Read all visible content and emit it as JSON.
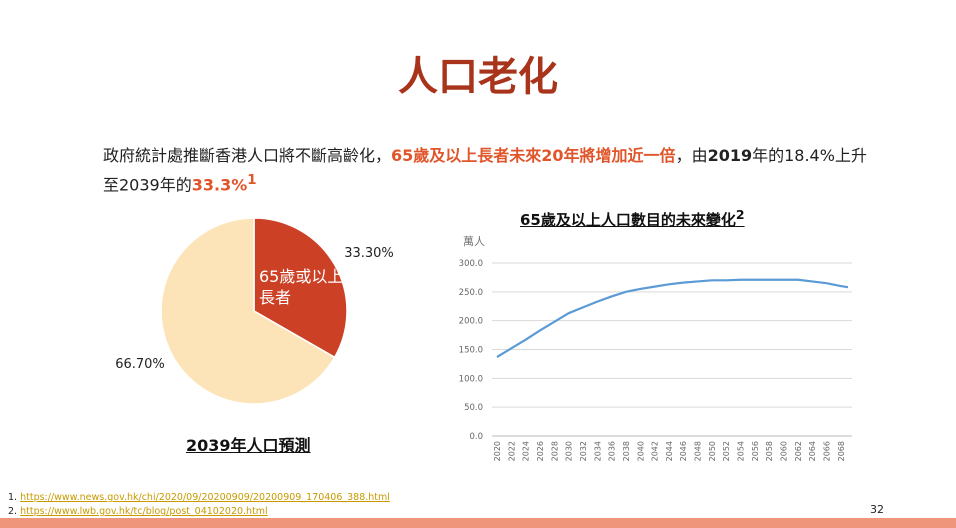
{
  "title": "人口老化",
  "intro": {
    "part1": "政府統計處推斷香港人口將不斷高齡化，",
    "highlight1": "65歲及以上長者未來20年將增加近一倍",
    "part2": "，由",
    "bold_year": "2019",
    "part3": "年的18.4%上升至2039年的",
    "highlight2": "33.3%",
    "sup": "1"
  },
  "chart_data": [
    {
      "type": "pie",
      "title": "2039年人口預測",
      "slices": [
        {
          "label": "65歲或以上長者",
          "value": 33.3,
          "data_label": "33.30%",
          "color": "#cc4125"
        },
        {
          "label": "",
          "value": 66.7,
          "data_label": "66.70%",
          "color": "#fde3b8"
        }
      ]
    },
    {
      "type": "line",
      "title": "65歲及以上人口數目的未來變化",
      "title_sup": "2",
      "ylabel": "萬人",
      "ylim": [
        0,
        300
      ],
      "yticks": [
        "0.0",
        "50.0",
        "100.0",
        "150.0",
        "200.0",
        "250.0",
        "300.0"
      ],
      "xticks": [
        "2020",
        "2022",
        "2024",
        "2026",
        "2028",
        "2030",
        "2032",
        "2034",
        "2036",
        "2038",
        "2040",
        "2042",
        "2044",
        "2046",
        "2048",
        "2050",
        "2052",
        "2054",
        "2056",
        "2058",
        "2060",
        "2062",
        "2064",
        "2066",
        "2068"
      ],
      "x": [
        2020,
        2022,
        2024,
        2026,
        2028,
        2030,
        2032,
        2034,
        2036,
        2038,
        2040,
        2042,
        2044,
        2046,
        2048,
        2050,
        2052,
        2054,
        2056,
        2058,
        2060,
        2062,
        2064,
        2066,
        2068,
        2069
      ],
      "values": [
        137,
        152,
        167,
        183,
        198,
        213,
        223,
        233,
        242,
        250,
        255,
        259,
        263,
        266,
        268,
        270,
        270,
        271,
        271,
        271,
        271,
        271,
        268,
        265,
        260,
        258
      ],
      "color": "#5b9bd5",
      "grid": true
    }
  ],
  "references": [
    {
      "num": "1.",
      "url": "https://www.news.gov.hk/chi/2020/09/20200909/20200909_170406_388.html"
    },
    {
      "num": "2.",
      "url": "https://www.lwb.gov.hk/tc/blog/post_04102020.html"
    }
  ],
  "page_number": "32"
}
